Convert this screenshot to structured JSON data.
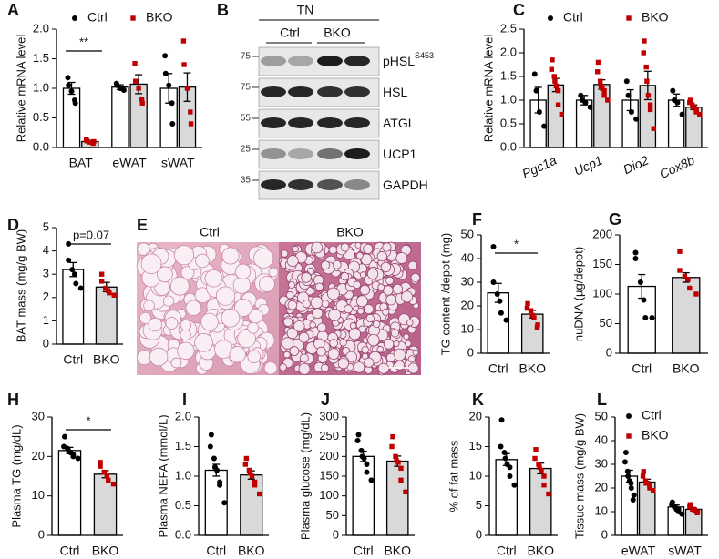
{
  "chart_data": [
    {
      "type": "bar",
      "panel": "A",
      "ylabel": "Relative mRNA level",
      "categories": [
        "BAT",
        "eWAT",
        "sWAT"
      ],
      "ylim": [
        0,
        2
      ],
      "yticks": [
        {
          "value": 0,
          "label": "0.0"
        },
        0.5,
        {
          "value": 1,
          "label": "1.0"
        },
        1.5,
        {
          "value": 2,
          "label": "2.0"
        }
      ],
      "annotation": "**",
      "series": [
        {
          "name": "Ctrl",
          "color": "#ffffff",
          "point_color": "#000000",
          "marker": "circle",
          "values": [
            1.0,
            1.02,
            1.0
          ],
          "errors": [
            0.1,
            0.04,
            0.25
          ],
          "points": [
            [
              1.18,
              1.05,
              0.95,
              0.8,
              0.75
            ],
            [
              1.08,
              1.05,
              1.0,
              0.98,
              0.97
            ],
            [
              1.55,
              1.25,
              1.05,
              0.75,
              0.4
            ]
          ]
        },
        {
          "name": "BKO",
          "color": "#d9d9d9",
          "point_color": "#c00000",
          "marker": "square",
          "values": [
            0.1,
            1.07,
            1.02
          ],
          "errors": [
            0.02,
            0.16,
            0.24
          ],
          "points": [
            [
              0.13,
              0.11,
              0.09,
              0.07,
              0.1
            ],
            [
              1.42,
              1.12,
              1.0,
              0.82,
              0.75
            ],
            [
              1.8,
              1.4,
              1.0,
              0.6,
              0.4
            ]
          ]
        }
      ]
    },
    {
      "type": "bar",
      "panel": "C",
      "ylabel": "Relative mRNA level",
      "categories": [
        "Pgc1a",
        "Ucp1",
        "Dio2",
        "Cox8b"
      ],
      "ylim": [
        0,
        2.5
      ],
      "yticks": [
        {
          "value": 0,
          "label": "0.0"
        },
        0.5,
        {
          "value": 1,
          "label": "1.0"
        },
        1.5,
        {
          "value": 2,
          "label": "2.0"
        },
        2.5
      ],
      "series": [
        {
          "name": "Ctrl",
          "color": "#ffffff",
          "point_color": "#000000",
          "marker": "circle",
          "values": [
            1.0,
            1.0,
            1.0,
            1.0
          ],
          "errors": [
            0.27,
            0.1,
            0.22,
            0.13
          ],
          "points": [
            [
              1.55,
              1.2,
              0.75,
              0.45
            ],
            [
              1.1,
              1.0,
              0.95,
              0.85
            ],
            [
              1.4,
              1.1,
              0.75,
              0.6
            ],
            [
              1.2,
              1.0,
              0.95,
              0.7
            ]
          ]
        },
        {
          "name": "BKO",
          "color": "#d9d9d9",
          "point_color": "#c00000",
          "marker": "square",
          "values": [
            1.32,
            1.33,
            1.31,
            0.85
          ],
          "errors": [
            0.14,
            0.1,
            0.3,
            0.05
          ],
          "points": [
            [
              1.85,
              1.65,
              1.5,
              1.4,
              1.3,
              1.2,
              0.9,
              0.7
            ],
            [
              1.8,
              1.6,
              1.4,
              1.3,
              1.25,
              1.2,
              1.1,
              1.0
            ],
            [
              2.25,
              2.0,
              1.7,
              1.4,
              1.1,
              0.9,
              0.8,
              0.4
            ],
            [
              1.0,
              0.95,
              0.9,
              0.85,
              0.85,
              0.8,
              0.75,
              0.7
            ]
          ]
        }
      ]
    },
    {
      "type": "bar",
      "panel": "D",
      "ylabel": "BAT mass (mg/g BW)",
      "categories": [
        "Ctrl",
        "BKO"
      ],
      "ylim": [
        0,
        5
      ],
      "yticks": [
        0,
        1,
        2,
        3,
        4,
        5
      ],
      "annotation": "p=0.07",
      "values": [
        3.2,
        2.45
      ],
      "errors": [
        0.3,
        0.2
      ],
      "colors": [
        "#ffffff",
        "#d9d9d9"
      ],
      "point_colors": [
        "#000000",
        "#c00000"
      ],
      "markers": [
        "circle",
        "square"
      ],
      "points": [
        [
          4.3,
          3.6,
          3.2,
          3.0,
          2.6,
          2.4
        ],
        [
          3.0,
          2.7,
          2.4,
          2.3,
          2.2,
          2.1
        ]
      ]
    },
    {
      "type": "bar",
      "panel": "F",
      "ylabel": "TG content /depot (mg)",
      "categories": [
        "Ctrl",
        "BKO"
      ],
      "ylim": [
        0,
        50
      ],
      "yticks": [
        0,
        10,
        20,
        30,
        40,
        50
      ],
      "annotation": "*",
      "values": [
        25.5,
        16.5
      ],
      "errors": [
        4,
        1.6
      ],
      "colors": [
        "#ffffff",
        "#d9d9d9"
      ],
      "point_colors": [
        "#000000",
        "#c00000"
      ],
      "markers": [
        "circle",
        "square"
      ],
      "points": [
        [
          45,
          30,
          25,
          22,
          17,
          14
        ],
        [
          21,
          19,
          18,
          16,
          15,
          12,
          11
        ]
      ]
    },
    {
      "type": "bar",
      "panel": "G",
      "ylabel": "nuDNA (µg/depot)",
      "categories": [
        "Ctrl",
        "BKO"
      ],
      "ylim": [
        0,
        200
      ],
      "yticks": [
        0,
        50,
        100,
        150,
        200
      ],
      "values": [
        113,
        128
      ],
      "errors": [
        20,
        8
      ],
      "colors": [
        "#ffffff",
        "#d9d9d9"
      ],
      "point_colors": [
        "#000000",
        "#c00000"
      ],
      "markers": [
        "circle",
        "square"
      ],
      "points": [
        [
          170,
          160,
          120,
          90,
          60,
          60
        ],
        [
          172,
          140,
          130,
          125,
          110,
          100
        ]
      ]
    },
    {
      "type": "bar",
      "panel": "H",
      "ylabel": "Plasma TG (mg/dL)",
      "categories": [
        "Ctrl",
        "BKO"
      ],
      "ylim": [
        0,
        30
      ],
      "yticks": [
        0,
        10,
        20,
        30
      ],
      "annotation": "*",
      "values": [
        21.5,
        15.5
      ],
      "errors": [
        0.8,
        0.9
      ],
      "colors": [
        "#ffffff",
        "#d9d9d9"
      ],
      "point_colors": [
        "#000000",
        "#c00000"
      ],
      "markers": [
        "circle",
        "square"
      ],
      "points": [
        [
          25,
          22.5,
          22,
          21.5,
          21,
          20.5,
          20,
          19.5
        ],
        [
          18.5,
          17.5,
          16,
          15,
          14,
          13
        ]
      ]
    },
    {
      "type": "bar",
      "panel": "I",
      "ylabel": "Plasma NEFA (mmol/L)",
      "categories": [
        "Ctrl",
        "BKO"
      ],
      "ylim": [
        0,
        2
      ],
      "yticks": [
        {
          "value": 0,
          "label": "0.0"
        },
        0.5,
        {
          "value": 1,
          "label": "1.0"
        },
        1.5,
        {
          "value": 2,
          "label": "2.0"
        }
      ],
      "values": [
        1.1,
        1.02
      ],
      "errors": [
        0.1,
        0.07
      ],
      "colors": [
        "#ffffff",
        "#d9d9d9"
      ],
      "point_colors": [
        "#000000",
        "#c00000"
      ],
      "markers": [
        "circle",
        "square"
      ],
      "points": [
        [
          1.7,
          1.5,
          1.3,
          1.15,
          1.1,
          0.9,
          0.85,
          0.55
        ],
        [
          1.3,
          1.2,
          1.1,
          1.05,
          1.0,
          0.9,
          0.85,
          0.7
        ]
      ]
    },
    {
      "type": "bar",
      "panel": "J",
      "ylabel": "Plasma glucose (mg/dL)",
      "categories": [
        "Ctrl",
        "BKO"
      ],
      "ylim": [
        0,
        300
      ],
      "yticks": [
        0,
        50,
        100,
        150,
        200,
        250,
        300
      ],
      "values": [
        200,
        188
      ],
      "errors": [
        13,
        13
      ],
      "colors": [
        "#ffffff",
        "#d9d9d9"
      ],
      "point_colors": [
        "#000000",
        "#c00000"
      ],
      "markers": [
        "circle",
        "square"
      ],
      "points": [
        [
          255,
          240,
          215,
          200,
          195,
          180,
          160,
          140
        ],
        [
          250,
          225,
          200,
          190,
          185,
          170,
          140,
          110
        ]
      ]
    },
    {
      "type": "bar",
      "panel": "K",
      "ylabel": "% of fat mass",
      "categories": [
        "Ctrl",
        "BKO"
      ],
      "ylim": [
        0,
        20
      ],
      "yticks": [
        0,
        5,
        10,
        15,
        20
      ],
      "values": [
        12.8,
        11.3
      ],
      "errors": [
        1,
        0.9
      ],
      "colors": [
        "#ffffff",
        "#d9d9d9"
      ],
      "point_colors": [
        "#000000",
        "#c00000"
      ],
      "markers": [
        "circle",
        "square"
      ],
      "points": [
        [
          19.5,
          15,
          14,
          13,
          12,
          11.5,
          10,
          8.5
        ],
        [
          14.5,
          13,
          12,
          11.5,
          11,
          10,
          8.5,
          7
        ]
      ]
    },
    {
      "type": "bar",
      "panel": "L",
      "ylabel": "Tissue mass (mg/g BW)",
      "categories": [
        "eWAT",
        "sWAT"
      ],
      "ylim": [
        0,
        50
      ],
      "yticks": [
        0,
        10,
        20,
        30,
        40,
        50
      ],
      "series": [
        {
          "name": "Ctrl",
          "color": "#ffffff",
          "point_color": "#000000",
          "marker": "circle",
          "values": [
            25,
            12
          ],
          "errors": [
            2.5,
            0.8
          ],
          "points": [
            [
              35,
              31,
              27,
              25,
              23,
              22,
              20,
              17,
              15
            ],
            [
              14,
              13,
              12,
              12,
              11,
              11,
              10,
              9
            ]
          ]
        },
        {
          "name": "BKO",
          "color": "#d9d9d9",
          "point_color": "#c00000",
          "marker": "square",
          "values": [
            22.5,
            11
          ],
          "errors": [
            1.2,
            0.5
          ],
          "points": [
            [
              27,
              25,
              23,
              22,
              22,
              21,
              20,
              19
            ],
            [
              13,
              12,
              11,
              11,
              10.5,
              10,
              9.5
            ]
          ]
        }
      ]
    }
  ],
  "blot": {
    "panel": "B",
    "title": "TN",
    "groups": [
      "Ctrl",
      "BKO"
    ],
    "bands": [
      {
        "label": "pHSL",
        "superscript": "S453",
        "marker": 75
      },
      {
        "label": "HSL",
        "marker": 75
      },
      {
        "label": "ATGL",
        "marker": 55
      },
      {
        "label": "UCP1",
        "marker": 25
      },
      {
        "label": "GAPDH",
        "marker": 35
      }
    ]
  },
  "histology": {
    "panel": "E",
    "labels": [
      "Ctrl",
      "BKO"
    ]
  }
}
